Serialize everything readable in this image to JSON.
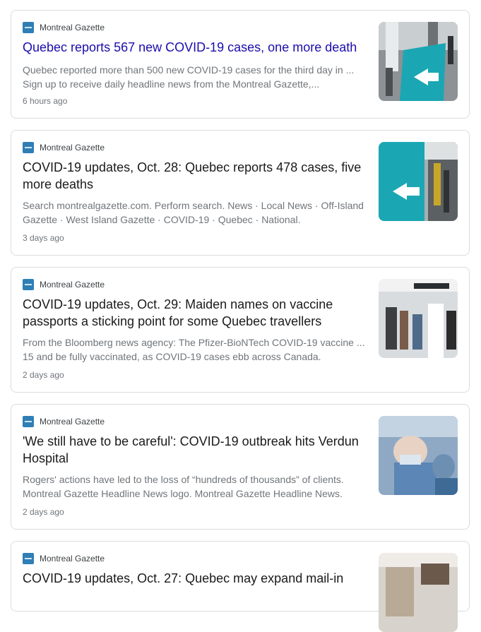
{
  "articles": [
    {
      "source": "Montreal Gazette",
      "title": "Quebec reports 567 new COVID-19 cases, one more death",
      "snippet_line1": "Quebec reported more than 500 new COVID-19 cases for the third day in ...",
      "snippet_line2": "Sign up to receive daily headline news from the Montreal Gazette,...",
      "time": "6 hours ago",
      "thumbnail": "vaccination-sign-image"
    },
    {
      "source": "Montreal Gazette",
      "title_line1": "COVID-19 updates, Oct. 28: Quebec reports 478 cases, five",
      "title_line2": "more deaths",
      "snippet_line1": "Search montrealgazette.com. Perform search. News · Local News · Off-Island",
      "snippet_line2": "Gazette · West Island Gazette · COVID-19 · Quebec · National.",
      "time": "3 days ago",
      "thumbnail": "vaccination-covid-sign-image"
    },
    {
      "source": "Montreal Gazette",
      "title_line1": "COVID-19 updates, Oct. 29: Maiden names on vaccine",
      "title_line2": "passports a sticking point for some Quebec travellers",
      "snippet_line1": "From the Bloomberg news agency: The Pfizer-BioNTech COVID-19 vaccine ...",
      "snippet_line2": "15 and be fully vaccinated, as COVID-19 cases ebb across Canada.",
      "time": "2 days ago",
      "thumbnail": "airport-travellers-image"
    },
    {
      "source": "Montreal Gazette",
      "title_line1": "'We still have to be careful': COVID-19 outbreak hits Verdun",
      "title_line2": "Hospital",
      "snippet_line1": "Rogers' actions have led to the loss of “hundreds of thousands” of clients.",
      "snippet_line2": "Montreal Gazette Headline News logo. Montreal Gazette Headline News.",
      "time": "2 days ago",
      "thumbnail": "healthcare-worker-image"
    },
    {
      "source": "Montreal Gazette",
      "title_line1": "COVID-19 updates, Oct. 27: Quebec may expand mail-in",
      "thumbnail": "voting-image"
    }
  ]
}
